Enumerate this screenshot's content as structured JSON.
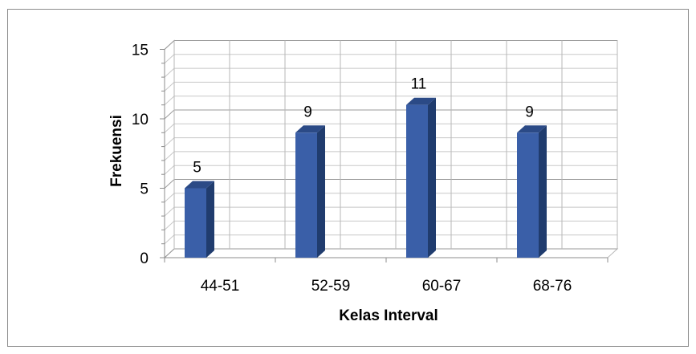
{
  "chart_data": {
    "type": "bar",
    "categories": [
      "44-51",
      "52-59",
      "60-67",
      "68-76"
    ],
    "values": [
      5,
      9,
      11,
      9
    ],
    "data_labels": [
      "5",
      "9",
      "11",
      "9"
    ],
    "title": "",
    "xlabel": "Kelas Interval",
    "ylabel": "Frekuensi",
    "ylim": [
      0,
      15
    ],
    "y_ticks": [
      0,
      5,
      10,
      15
    ],
    "y_tick_labels": [
      "0",
      "5",
      "10",
      "15"
    ],
    "grid": true,
    "legend": "none",
    "style": "3d-column",
    "colors": {
      "bar_front": "#3a5fa8",
      "bar_side": "#203c6e",
      "bar_top": "#2b4a86",
      "grid": "#b7b7b7",
      "frame": "#8c8c8c"
    }
  }
}
